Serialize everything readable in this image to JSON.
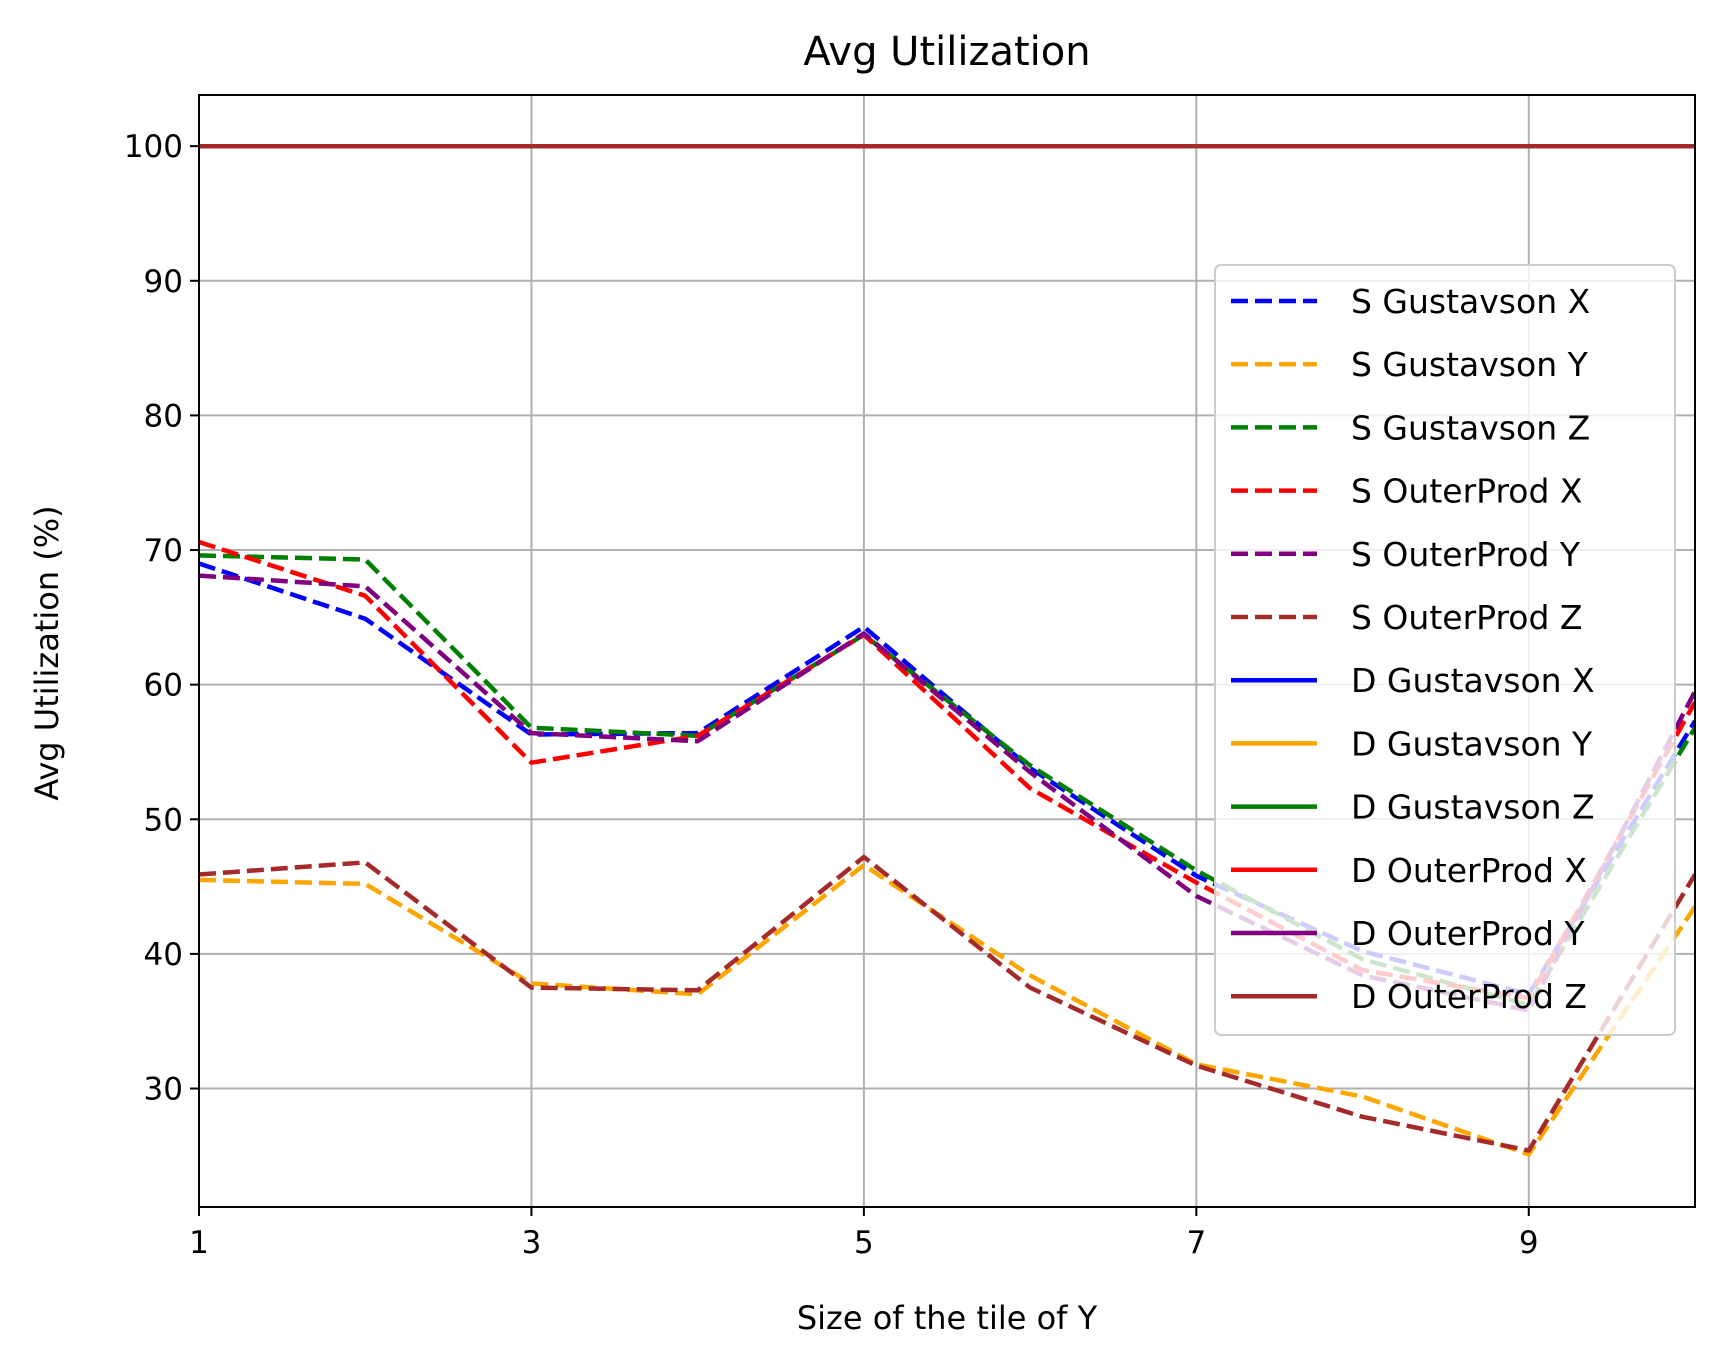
{
  "chart_data": {
    "type": "line",
    "title": "Avg Utilization",
    "xlabel": "Size of the tile of Y",
    "ylabel": "Avg Utilization (%)",
    "xlim": [
      1,
      10
    ],
    "ylim": [
      21.2,
      103.8
    ],
    "x_ticks": [
      1,
      3,
      5,
      7,
      9
    ],
    "x_tick_labels": [
      "1",
      "3",
      "5",
      "7",
      "9"
    ],
    "y_ticks": [
      30,
      40,
      50,
      60,
      70,
      80,
      90,
      100
    ],
    "y_tick_labels": [
      "30",
      "40",
      "50",
      "60",
      "70",
      "80",
      "90",
      "100"
    ],
    "grid": true,
    "legend_position": "right",
    "x": [
      1,
      2,
      3,
      4,
      5,
      6,
      7,
      8,
      9,
      10
    ],
    "series": [
      {
        "name": "S Gustavson X",
        "color": "#0000ff",
        "style": "dashed",
        "values": [
          69.0,
          64.9,
          56.3,
          56.4,
          64.3,
          53.8,
          45.8,
          40.2,
          37.0,
          57.3
        ]
      },
      {
        "name": "S Gustavson Y",
        "color": "#ffa500",
        "style": "dashed",
        "values": [
          45.5,
          45.2,
          37.8,
          37.0,
          46.6,
          38.4,
          31.8,
          29.4,
          25.1,
          43.5
        ]
      },
      {
        "name": "S Gustavson Z",
        "color": "#008000",
        "style": "dashed",
        "values": [
          69.6,
          69.3,
          56.8,
          56.2,
          63.7,
          54.0,
          46.2,
          39.6,
          36.2,
          56.8
        ]
      },
      {
        "name": "S OuterProd X",
        "color": "#ff0000",
        "style": "dashed",
        "values": [
          70.6,
          66.6,
          54.2,
          56.2,
          63.7,
          52.3,
          45.3,
          38.8,
          36.7,
          58.7
        ]
      },
      {
        "name": "S OuterProd Y",
        "color": "#800080",
        "style": "dashed",
        "values": [
          68.1,
          67.3,
          56.4,
          55.8,
          63.8,
          53.5,
          44.3,
          38.4,
          35.8,
          59.5
        ]
      },
      {
        "name": "S OuterProd Z",
        "color": "#a52a2a",
        "style": "dashed",
        "values": [
          45.9,
          46.8,
          37.5,
          37.3,
          47.2,
          37.5,
          31.7,
          27.9,
          25.4,
          45.9
        ]
      },
      {
        "name": "D Gustavson X",
        "color": "#0000ff",
        "style": "solid",
        "values": [
          100,
          100,
          100,
          100,
          100,
          100,
          100,
          100,
          100,
          100
        ]
      },
      {
        "name": "D Gustavson Y",
        "color": "#ffa500",
        "style": "solid",
        "values": [
          100,
          100,
          100,
          100,
          100,
          100,
          100,
          100,
          100,
          100
        ]
      },
      {
        "name": "D Gustavson Z",
        "color": "#008000",
        "style": "solid",
        "values": [
          100,
          100,
          100,
          100,
          100,
          100,
          100,
          100,
          100,
          100
        ]
      },
      {
        "name": "D OuterProd X",
        "color": "#ff0000",
        "style": "solid",
        "values": [
          100,
          100,
          100,
          100,
          100,
          100,
          100,
          100,
          100,
          100
        ]
      },
      {
        "name": "D OuterProd Y",
        "color": "#800080",
        "style": "solid",
        "values": [
          100,
          100,
          100,
          100,
          100,
          100,
          100,
          100,
          100,
          100
        ]
      },
      {
        "name": "D OuterProd Z",
        "color": "#a52a2a",
        "style": "solid",
        "values": [
          100,
          100,
          100,
          100,
          100,
          100,
          100,
          100,
          100,
          100
        ]
      }
    ]
  }
}
